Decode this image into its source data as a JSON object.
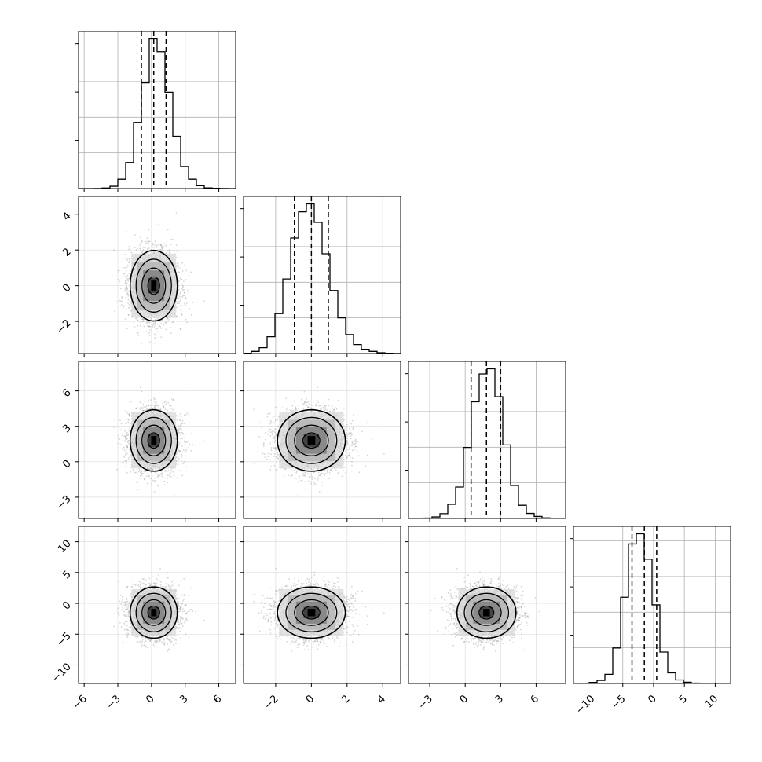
{
  "chart_data": {
    "type": "corner",
    "n_params": 4,
    "grid": true,
    "quantiles": [
      0.16,
      0.5,
      0.84
    ],
    "params": [
      {
        "mean": 0.2,
        "std": 1.05,
        "quantile_lines": [
          -0.9,
          0.2,
          1.3
        ],
        "range": [
          -6.5,
          7.5
        ],
        "ticks": [
          -6,
          -3,
          0,
          3,
          6
        ],
        "tick_labels": [
          "−6",
          "−3",
          "0",
          "3",
          "6"
        ]
      },
      {
        "mean": 0.0,
        "std": 0.95,
        "quantile_lines": [
          -0.95,
          0.0,
          0.95
        ],
        "range": [
          -3.8,
          5.0
        ],
        "ticks": [
          -2,
          0,
          2,
          4
        ],
        "tick_labels": [
          "−2",
          "0",
          "2",
          "4"
        ]
      },
      {
        "mean": 1.8,
        "std": 1.25,
        "quantile_lines": [
          0.5,
          1.8,
          3.0
        ],
        "range": [
          -4.8,
          8.5
        ],
        "ticks": [
          -3,
          0,
          3,
          6
        ],
        "tick_labels": [
          "−3",
          "0",
          "3",
          "6"
        ]
      },
      {
        "mean": -1.5,
        "std": 2.0,
        "quantile_lines": [
          -3.5,
          -1.5,
          0.5
        ],
        "range": [
          -13.0,
          12.5
        ],
        "ticks": [
          -10,
          -5,
          0,
          5,
          10
        ],
        "tick_labels": [
          "−10",
          "−5",
          "0",
          "5",
          "10"
        ]
      }
    ],
    "histograms": [
      {
        "bins": [
          -6.5,
          -5.8,
          -5.1,
          -4.4,
          -3.7,
          -3.0,
          -2.3,
          -1.6,
          -0.9,
          -0.2,
          0.5,
          1.2,
          1.9,
          2.6,
          3.3,
          4.0,
          4.7,
          5.4,
          6.1,
          6.8,
          7.5
        ],
        "counts": [
          0,
          0,
          2,
          10,
          40,
          160,
          450,
          1140,
          1820,
          2580,
          2360,
          1660,
          900,
          380,
          160,
          50,
          12,
          4,
          1,
          0
        ]
      },
      {
        "bins": [
          -3.8,
          -3.36,
          -2.92,
          -2.48,
          -2.04,
          -1.6,
          -1.16,
          -0.72,
          -0.28,
          0.16,
          0.6,
          1.04,
          1.48,
          1.92,
          2.36,
          2.8,
          3.24,
          3.68,
          4.12,
          4.56,
          5.0
        ],
        "counts": [
          5,
          40,
          110,
          320,
          760,
          1420,
          2200,
          2700,
          2850,
          2500,
          1900,
          1200,
          680,
          360,
          170,
          80,
          40,
          15,
          6,
          2
        ]
      },
      {
        "bins": [
          -4.8,
          -4.135,
          -3.47,
          -2.805,
          -2.14,
          -1.475,
          -0.81,
          -0.145,
          0.52,
          1.185,
          1.85,
          2.515,
          3.18,
          3.845,
          4.51,
          5.175,
          5.84,
          6.505,
          7.17,
          7.835,
          8.5
        ],
        "counts": [
          0,
          2,
          8,
          30,
          95,
          280,
          620,
          1400,
          2300,
          2850,
          2950,
          2400,
          1450,
          650,
          260,
          100,
          40,
          12,
          3,
          0
        ]
      },
      {
        "bins": [
          -13.0,
          -11.725,
          -10.45,
          -9.175,
          -7.9,
          -6.625,
          -5.35,
          -4.075,
          -2.8,
          -1.525,
          -0.25,
          1.025,
          2.3,
          3.575,
          4.85,
          6.125,
          7.4,
          8.675,
          9.95,
          11.225,
          12.5
        ],
        "counts": [
          0,
          5,
          20,
          60,
          180,
          700,
          1700,
          2750,
          2950,
          2450,
          1550,
          620,
          210,
          70,
          25,
          8,
          2,
          0,
          0,
          0
        ]
      }
    ]
  }
}
